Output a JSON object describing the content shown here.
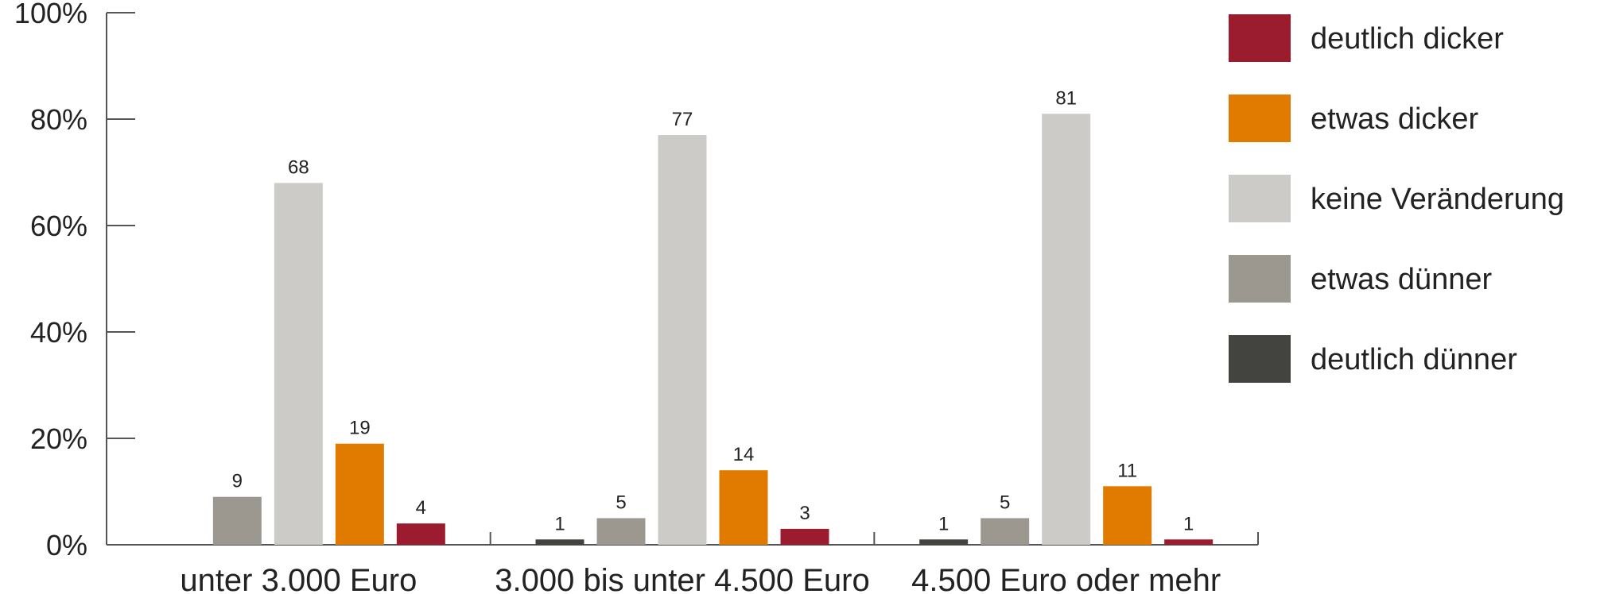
{
  "chart_data": {
    "type": "bar",
    "categories": [
      "unter 3.000 Euro",
      "3.000 bis unter 4.500 Euro",
      "4.500 Euro oder mehr"
    ],
    "series": [
      {
        "name": "deutlich dünner",
        "color": "#434440",
        "values": [
          null,
          1,
          1
        ]
      },
      {
        "name": "etwas dünner",
        "color": "#9c9890",
        "values": [
          9,
          5,
          5
        ]
      },
      {
        "name": "keine Veränderung",
        "color": "#cccbc7",
        "values": [
          68,
          77,
          81
        ]
      },
      {
        "name": "etwas dicker",
        "color": "#e07b00",
        "values": [
          19,
          14,
          11
        ]
      },
      {
        "name": "deutlich dicker",
        "color": "#9b1c2e",
        "values": [
          4,
          3,
          1
        ]
      }
    ],
    "legend_order": [
      "deutlich dicker",
      "etwas dicker",
      "keine Veränderung",
      "etwas dünner",
      "deutlich dünner"
    ],
    "y_ticks": [
      "0%",
      "20%",
      "40%",
      "60%",
      "80%",
      "100%"
    ],
    "ylim": [
      0,
      100
    ],
    "title": "",
    "xlabel": "",
    "ylabel": "",
    "legend_position": "right",
    "grid": false
  }
}
